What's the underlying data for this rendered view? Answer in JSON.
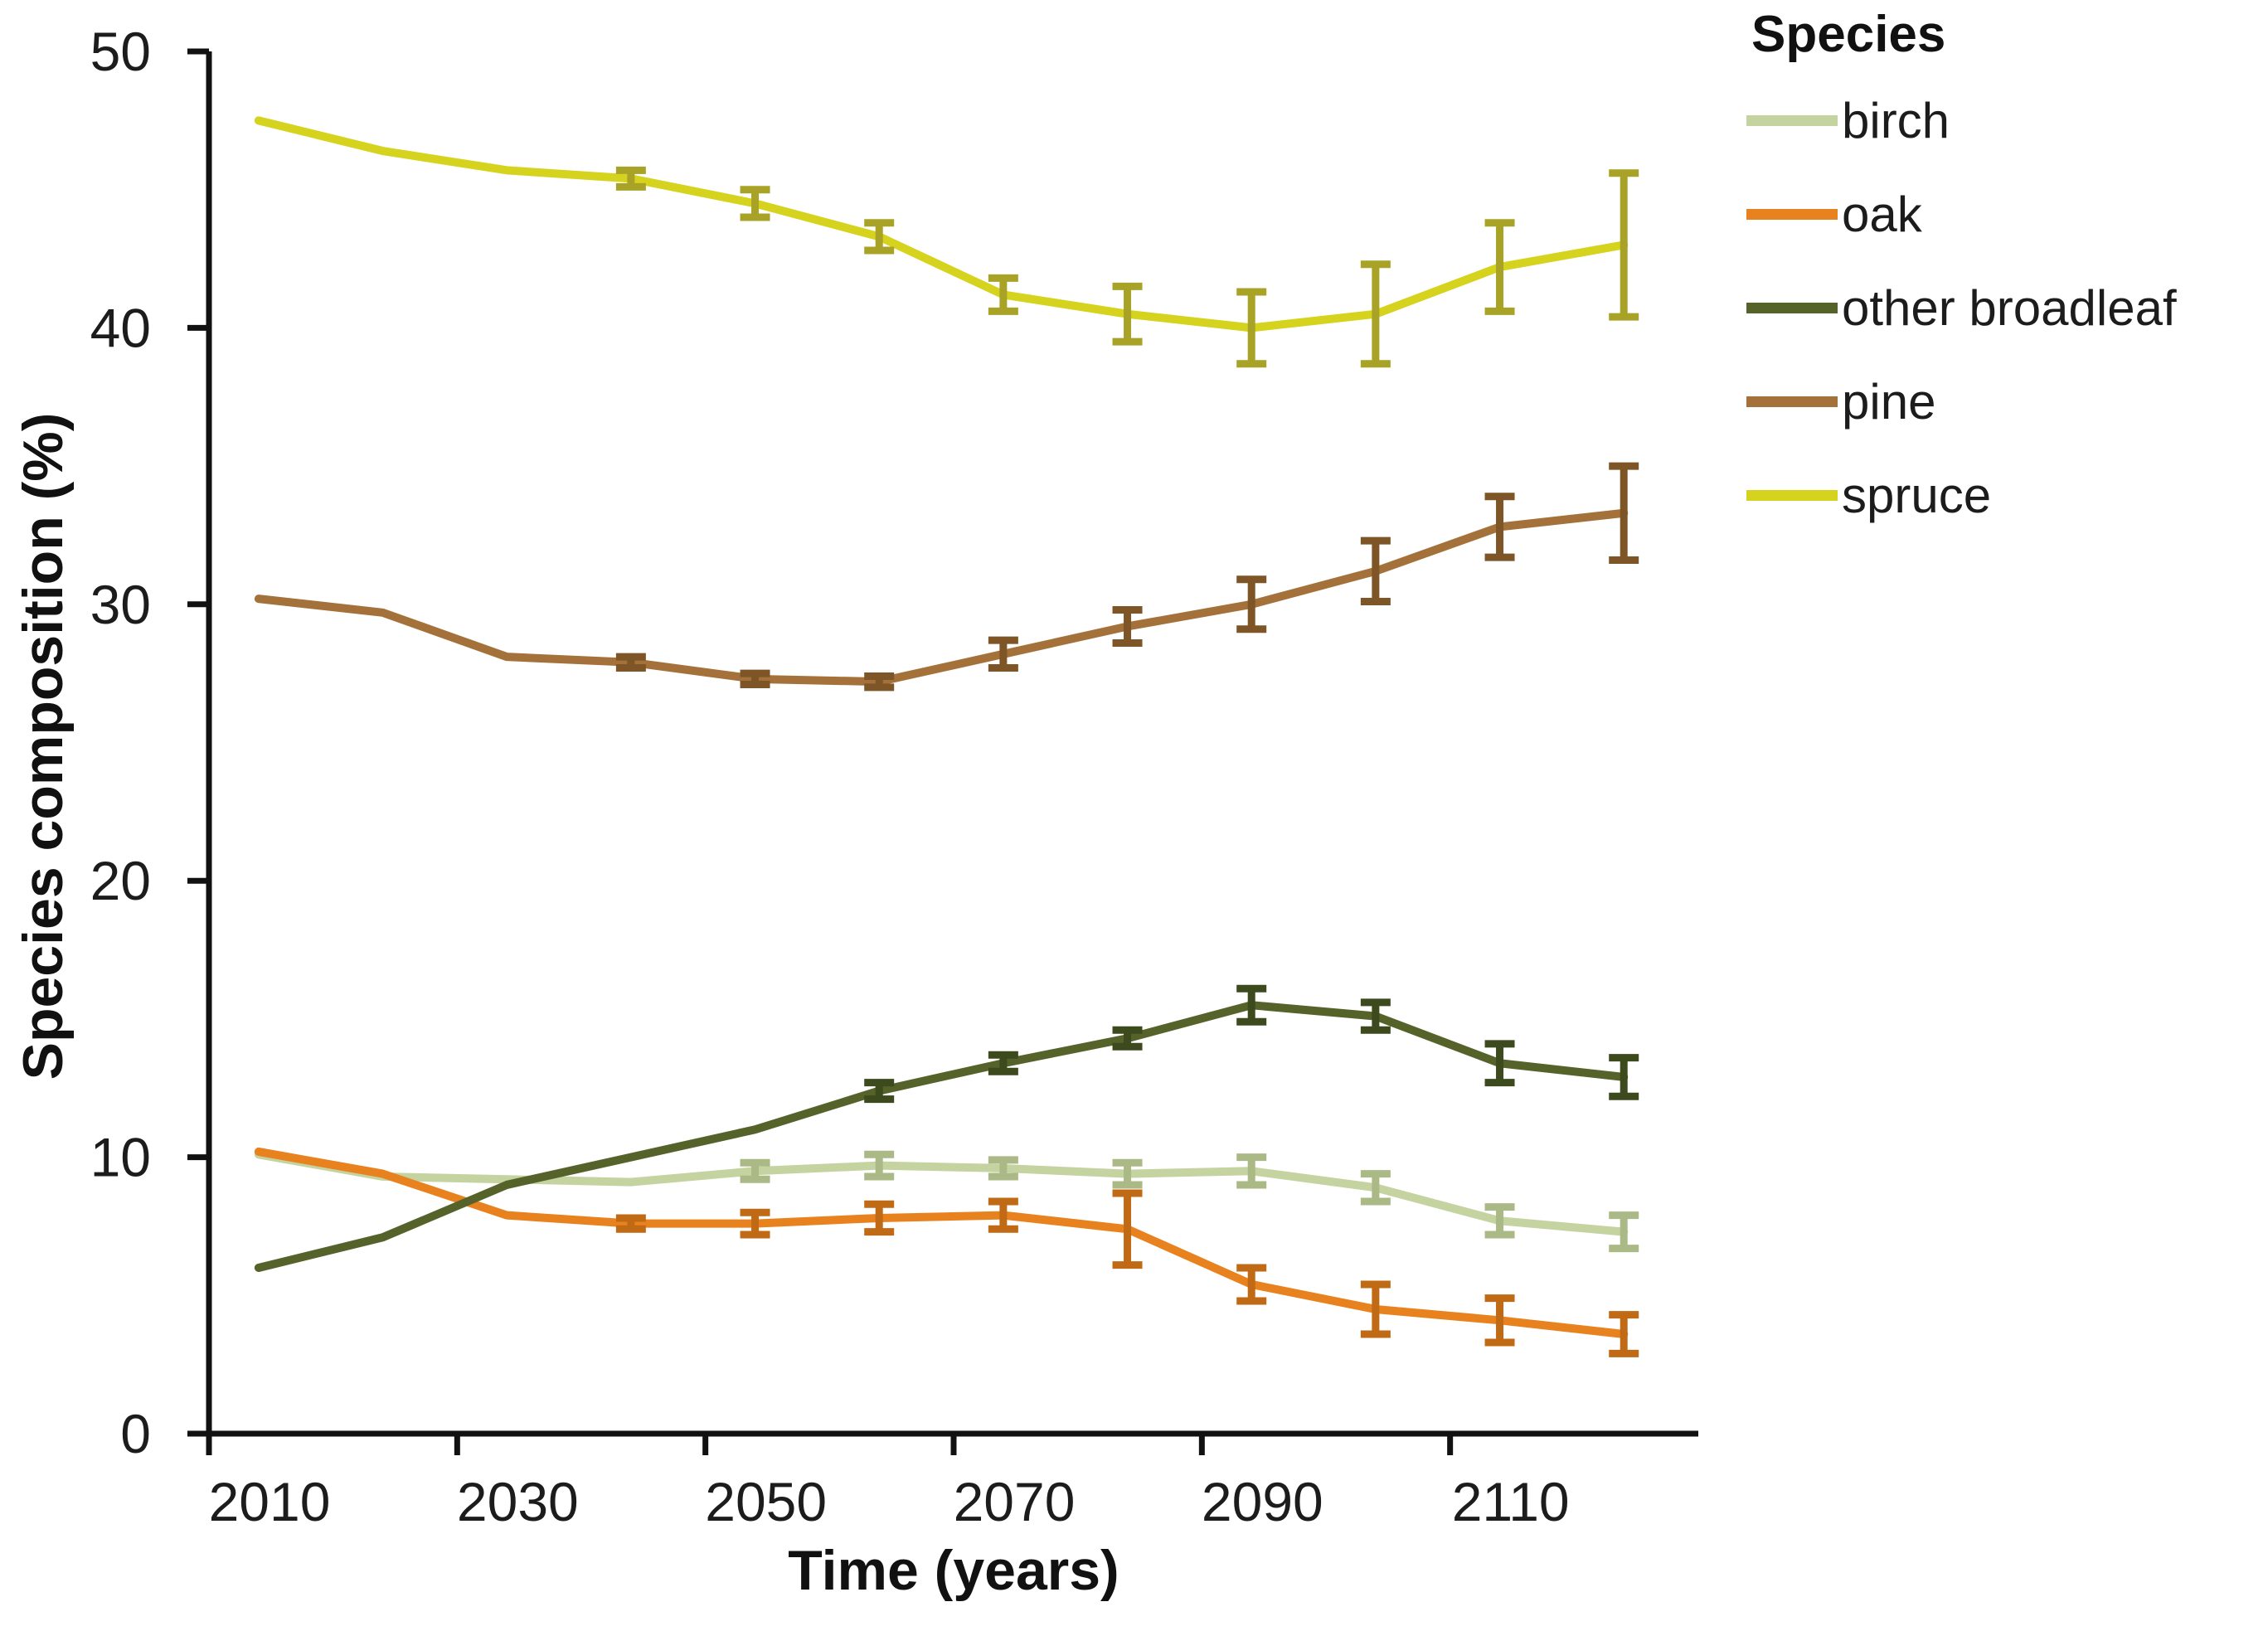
{
  "chart_data": {
    "type": "line",
    "title": "",
    "xlabel": "Time (years)",
    "ylabel": "Species composition (%)",
    "legend_title": "Species",
    "legend_position": "right",
    "grid": false,
    "error_bars": true,
    "xlim": [
      2010,
      2130
    ],
    "ylim": [
      0,
      50
    ],
    "x_tick_labels": [
      "2010",
      "2030",
      "2050",
      "2070",
      "2090",
      "2110"
    ],
    "x_tick_years": [
      2010,
      2030,
      2050,
      2070,
      2090,
      2110
    ],
    "y_ticks": [
      0,
      10,
      20,
      30,
      40,
      50
    ],
    "x": [
      2014,
      2024,
      2034,
      2044,
      2054,
      2064,
      2074,
      2084,
      2094,
      2104,
      2114,
      2124
    ],
    "series": [
      {
        "name": "birch",
        "color": "#c5d3a0",
        "err_color": "#aab985",
        "values": [
          10.1,
          9.3,
          9.2,
          9.1,
          9.5,
          9.7,
          9.6,
          9.4,
          9.5,
          8.9,
          7.7,
          7.3
        ],
        "errors": [
          0,
          0,
          0,
          0,
          0.3,
          0.4,
          0.3,
          0.4,
          0.5,
          0.5,
          0.5,
          0.6
        ]
      },
      {
        "name": "oak",
        "color": "#e8821e",
        "err_color": "#c06a15",
        "values": [
          10.2,
          9.4,
          7.9,
          7.6,
          7.6,
          7.8,
          7.9,
          7.4,
          5.4,
          4.5,
          4.1,
          3.6
        ],
        "errors": [
          0,
          0,
          0,
          0.2,
          0.4,
          0.5,
          0.5,
          1.3,
          0.6,
          0.9,
          0.8,
          0.7
        ]
      },
      {
        "name": "other broadleaf",
        "color": "#55622a",
        "err_color": "#3c4a1e",
        "values": [
          6.0,
          7.1,
          9.0,
          10.0,
          11.0,
          12.4,
          13.4,
          14.3,
          15.5,
          15.1,
          13.4,
          12.9
        ],
        "errors": [
          0,
          0,
          0,
          0,
          0,
          0.3,
          0.3,
          0.3,
          0.6,
          0.5,
          0.7,
          0.7
        ]
      },
      {
        "name": "pine",
        "color": "#a5713b",
        "err_color": "#7d5526",
        "values": [
          30.2,
          29.7,
          28.1,
          27.9,
          27.3,
          27.2,
          28.2,
          29.2,
          30.0,
          31.2,
          32.8,
          33.3
        ],
        "errors": [
          0,
          0,
          0,
          0.2,
          0.2,
          0.2,
          0.5,
          0.6,
          0.9,
          1.1,
          1.1,
          1.7
        ]
      },
      {
        "name": "spruce",
        "color": "#d6d31e",
        "err_color": "#a8a326",
        "values": [
          47.5,
          46.4,
          45.7,
          45.4,
          44.5,
          43.3,
          41.2,
          40.5,
          40.0,
          40.5,
          42.2,
          43.0
        ],
        "errors": [
          0,
          0,
          0,
          0.3,
          0.5,
          0.5,
          0.6,
          1.0,
          1.3,
          1.8,
          1.6,
          2.6
        ]
      }
    ]
  }
}
